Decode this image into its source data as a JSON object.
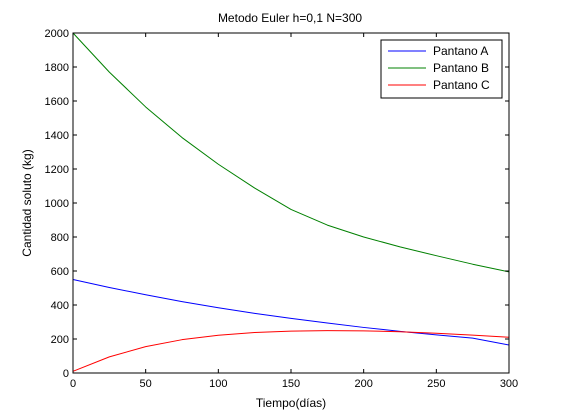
{
  "chart_data": {
    "type": "line",
    "title": "Metodo Euler h=0,1 N=300",
    "xlabel": "Tiempo(días)",
    "ylabel": "Cantidad soluto (kg)",
    "xlim": [
      0,
      300
    ],
    "ylim": [
      0,
      2000
    ],
    "xticks": [
      0,
      50,
      100,
      150,
      200,
      250,
      300
    ],
    "yticks": [
      0,
      200,
      400,
      600,
      800,
      1000,
      1200,
      1400,
      1600,
      1800,
      2000
    ],
    "grid": false,
    "legend_position": "top-right",
    "x": [
      0,
      25,
      50,
      75,
      100,
      125,
      150,
      175,
      200,
      225,
      250,
      275,
      300
    ],
    "series": [
      {
        "name": "Pantano A",
        "color": "#0000ff",
        "values": [
          550,
          503,
          460,
          420,
          384,
          351,
          321,
          294,
          268,
          245,
          224,
          205,
          165
        ]
      },
      {
        "name": "Pantano B",
        "color": "#008000",
        "values": [
          2000,
          1770,
          1565,
          1385,
          1228,
          1088,
          962,
          870,
          800,
          742,
          690,
          640,
          595
        ]
      },
      {
        "name": "Pantano C",
        "color": "#ff0000",
        "values": [
          10,
          95,
          155,
          196,
          222,
          238,
          246,
          249,
          248,
          243,
          234,
          223,
          210
        ]
      }
    ]
  }
}
